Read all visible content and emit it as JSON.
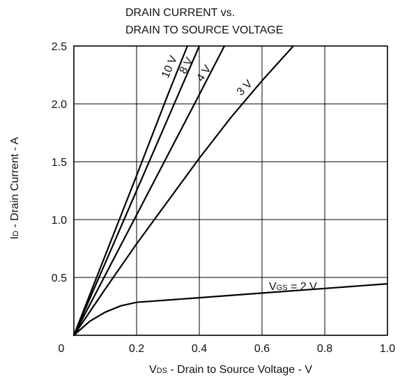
{
  "chart_data": {
    "type": "line",
    "title_lines": [
      "DRAIN CURRENT vs.",
      "DRAIN TO SOURCE VOLTAGE"
    ],
    "xlabel_prefix": "V",
    "xlabel_sub": "DS",
    "xlabel_rest": " - Drain to Source Voltage - V",
    "ylabel_prefix": "I",
    "ylabel_sub": "D",
    "ylabel_rest": " - Drain Current - A",
    "xlim": [
      0,
      1.0
    ],
    "ylim": [
      0,
      2.5
    ],
    "x_ticks": [
      "0",
      "0.2",
      "0.4",
      "0.6",
      "0.8",
      "1.0"
    ],
    "y_ticks": [
      "0.5",
      "1.0",
      "1.5",
      "2.0",
      "2.5"
    ],
    "grid": true,
    "series": [
      {
        "name": "10 V",
        "points": [
          [
            0,
            0
          ],
          [
            0.1,
            0.69
          ],
          [
            0.2,
            1.38
          ],
          [
            0.3,
            2.08
          ],
          [
            0.362,
            2.5
          ]
        ]
      },
      {
        "name": "8 V",
        "points": [
          [
            0,
            0
          ],
          [
            0.1,
            0.625
          ],
          [
            0.2,
            1.25
          ],
          [
            0.3,
            1.875
          ],
          [
            0.4,
            2.5
          ]
        ]
      },
      {
        "name": "4 V",
        "points": [
          [
            0,
            0
          ],
          [
            0.1,
            0.52
          ],
          [
            0.2,
            1.04
          ],
          [
            0.3,
            1.56
          ],
          [
            0.4,
            2.08
          ],
          [
            0.48,
            2.5
          ]
        ]
      },
      {
        "name": "3 V",
        "points": [
          [
            0,
            0
          ],
          [
            0.1,
            0.4
          ],
          [
            0.2,
            0.79
          ],
          [
            0.3,
            1.16
          ],
          [
            0.4,
            1.53
          ],
          [
            0.5,
            1.88
          ],
          [
            0.6,
            2.2
          ],
          [
            0.7,
            2.5
          ]
        ]
      },
      {
        "name": "V_GS = 2 V",
        "points": [
          [
            0,
            0
          ],
          [
            0.05,
            0.12
          ],
          [
            0.1,
            0.2
          ],
          [
            0.15,
            0.255
          ],
          [
            0.2,
            0.285
          ],
          [
            0.4,
            0.325
          ],
          [
            0.6,
            0.365
          ],
          [
            0.8,
            0.405
          ],
          [
            1.0,
            0.445
          ]
        ]
      }
    ],
    "curve_labels": [
      {
        "text": "10 V"
      },
      {
        "text": "8 V"
      },
      {
        "text": "4 V"
      },
      {
        "text": "3 V"
      },
      {
        "prefix": "V",
        "sub": "GS",
        "rest": " = 2 V"
      }
    ]
  }
}
